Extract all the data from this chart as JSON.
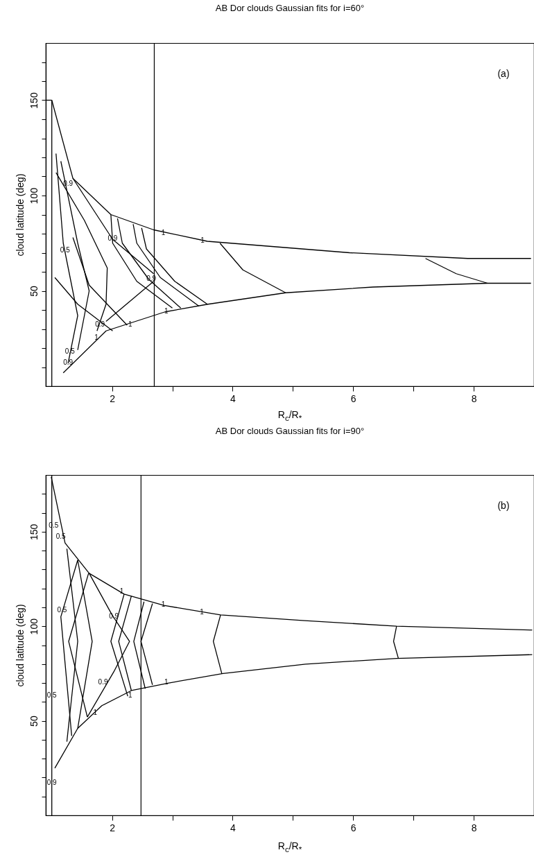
{
  "chart_data": [
    {
      "type": "line",
      "title": "AB Dor clouds Gaussian fits for i=60°",
      "xlabel": "R$_{c}$/R$_{*}$",
      "ylabel": "cloud latitude (deg)",
      "xlim": [
        0.9,
        9
      ],
      "ylim": [
        0,
        180
      ],
      "xticks": [
        2,
        {
          "value": 3,
          "label": null
        },
        4,
        {
          "value": 5,
          "label": null
        },
        6,
        {
          "value": 7,
          "label": null
        },
        8
      ],
      "yticks": [
        {
          "value": 10,
          "label": null
        },
        {
          "value": 20,
          "label": null
        },
        {
          "value": 30,
          "label": null
        },
        {
          "value": 40,
          "label": null
        },
        50,
        {
          "value": 60,
          "label": null
        },
        {
          "value": 70,
          "label": null
        },
        {
          "value": 80,
          "label": null
        },
        {
          "value": 90,
          "label": null
        },
        100,
        {
          "value": 110,
          "label": null
        },
        {
          "value": 120,
          "label": null
        },
        {
          "value": 130,
          "label": null
        },
        {
          "value": 140,
          "label": null
        },
        150,
        {
          "value": 160,
          "label": null
        },
        {
          "value": 170,
          "label": null
        }
      ],
      "series": [
        {
          "color": "#000000",
          "x": [
            1.0,
            1.0
          ],
          "values": [
            150,
            0
          ]
        },
        {
          "color": "#000000",
          "x": [
            1.0,
            1.35,
            1.98,
            2.69,
            3.58,
            5.94,
            7.9,
            8.95
          ],
          "values": [
            150,
            109,
            90,
            82,
            76,
            70,
            67,
            67
          ]
        },
        {
          "color": "#000000",
          "x": [
            1.19,
            1.9,
            2.88,
            3.59,
            4.88,
            6.33,
            8.23,
            8.95
          ],
          "values": [
            7,
            29,
            39,
            43,
            49,
            52,
            54,
            54
          ]
        },
        {
          "color": "#000000",
          "x": [
            1.05,
            1.43,
            2.01
          ],
          "values": [
            57,
            43,
            29
          ]
        },
        {
          "color": "#000000",
          "x": [
            1.35,
            1.62,
            2.25
          ],
          "values": [
            78,
            53,
            32
          ]
        },
        {
          "color": "#000000",
          "x": [
            1.98,
            2.01,
            2.41,
            3.0
          ],
          "values": [
            90,
            75,
            55,
            41
          ]
        },
        {
          "color": "#000000",
          "x": [
            2.09,
            2.17,
            2.61,
            3.14
          ],
          "values": [
            88,
            75,
            56,
            41
          ]
        },
        {
          "color": "#000000",
          "x": [
            2.35,
            2.41,
            2.8,
            3.44
          ],
          "values": [
            85,
            75,
            57,
            42
          ]
        },
        {
          "color": "#000000",
          "x": [
            2.49,
            2.57,
            3.04,
            3.58
          ],
          "values": [
            83,
            72,
            55,
            43
          ]
        },
        {
          "color": "#000000",
          "x": [
            3.79,
            4.17,
            4.88
          ],
          "values": [
            75,
            61,
            49
          ]
        },
        {
          "color": "#000000",
          "x": [
            7.2,
            7.71,
            8.23
          ],
          "values": [
            67,
            59,
            54
          ]
        },
        {
          "color": "#000000",
          "x": [
            1.35,
            2.01,
            2.69
          ],
          "values": [
            109,
            77,
            59
          ]
        },
        {
          "color": "#000000",
          "x": [
            2.69,
            1.9
          ],
          "values": [
            55,
            34
          ]
        },
        {
          "color": "#000000",
          "x": [
            1.07,
            1.54,
            1.92,
            1.9,
            1.75
          ],
          "values": [
            112,
            87,
            62,
            43,
            29
          ]
        },
        {
          "color": "#000000",
          "x": [
            1.15,
            1.43,
            1.62,
            1.43
          ],
          "values": [
            118,
            75,
            50,
            19
          ]
        },
        {
          "color": "#000000",
          "x": [
            1.07,
            1.19,
            1.43,
            1.27
          ],
          "values": [
            122,
            75,
            37,
            12
          ]
        },
        {
          "color": "#000000",
          "x": [
            0.9,
            1.0
          ],
          "values": [
            150,
            150
          ]
        }
      ],
      "ref_lines": [
        {
          "axis": "x",
          "value": 2.7,
          "color": "#000000"
        }
      ],
      "annotations": [
        "(a)",
        {
          "text": "1",
          "x": 2.85,
          "y": 80
        },
        {
          "text": "1",
          "x": 3.5,
          "y": 76
        },
        {
          "text": "1",
          "x": 2.9,
          "y": 39
        },
        {
          "text": "1",
          "x": 2.3,
          "y": 32
        },
        {
          "text": "1",
          "x": 1.74,
          "y": 25
        },
        {
          "text": "0.9",
          "x": 2.01,
          "y": 77
        },
        {
          "text": "0.9",
          "x": 2.65,
          "y": 56
        },
        {
          "text": "0.9",
          "x": 1.27,
          "y": 106
        },
        {
          "text": "0.9",
          "x": 1.8,
          "y": 32
        },
        {
          "text": "0.5",
          "x": 1.22,
          "y": 71
        },
        {
          "text": "0.5",
          "x": 1.3,
          "y": 18
        },
        {
          "text": "0.9",
          "x": 1.27,
          "y": 12
        }
      ]
    },
    {
      "type": "line",
      "title": "AB Dor clouds Gaussian fits for i=90°",
      "xlabel": "R$_{c}$/R$_{*}$",
      "ylabel": "cloud latitude (deg)",
      "xlim": [
        0.9,
        9
      ],
      "ylim": [
        0,
        180
      ],
      "xticks": [
        2,
        {
          "value": 3,
          "label": null
        },
        4,
        {
          "value": 5,
          "label": null
        },
        6,
        {
          "value": 7,
          "label": null
        },
        8
      ],
      "yticks": [
        {
          "value": 10,
          "label": null
        },
        {
          "value": 20,
          "label": null
        },
        {
          "value": 30,
          "label": null
        },
        {
          "value": 40,
          "label": null
        },
        50,
        {
          "value": 60,
          "label": null
        },
        {
          "value": 70,
          "label": null
        },
        {
          "value": 80,
          "label": null
        },
        {
          "value": 90,
          "label": null
        },
        100,
        {
          "value": 110,
          "label": null
        },
        {
          "value": 120,
          "label": null
        },
        {
          "value": 130,
          "label": null
        },
        {
          "value": 140,
          "label": null
        },
        150,
        {
          "value": 160,
          "label": null
        },
        {
          "value": 170,
          "label": null
        }
      ],
      "series": [
        {
          "color": "#000000",
          "x": [
            1.0,
            1.0
          ],
          "values": [
            0,
            180
          ]
        },
        {
          "color": "#000000",
          "x": [
            0.99,
            1.22,
            1.62,
            2.2,
            2.86,
            3.8,
            5.2,
            6.72,
            8.97
          ],
          "values": [
            179,
            144,
            128,
            117,
            111,
            106,
            103,
            100,
            98
          ]
        },
        {
          "color": "#000000",
          "x": [
            1.05,
            1.43,
            1.83,
            2.32,
            2.94,
            3.84,
            5.21,
            6.72,
            8.97
          ],
          "values": [
            25,
            46,
            58,
            66,
            70,
            75,
            80,
            83,
            85
          ]
        },
        {
          "color": "#000000",
          "x": [
            3.8,
            3.68,
            3.82
          ],
          "values": [
            106,
            92,
            75
          ]
        },
        {
          "color": "#000000",
          "x": [
            6.72,
            6.67,
            6.75
          ],
          "values": [
            100,
            92,
            83
          ]
        },
        {
          "color": "#000000",
          "x": [
            2.67,
            2.48,
            2.67
          ],
          "values": [
            112,
            92,
            69
          ]
        },
        {
          "color": "#000000",
          "x": [
            2.53,
            2.36,
            2.55
          ],
          "values": [
            113,
            92,
            67
          ]
        },
        {
          "color": "#000000",
          "x": [
            2.32,
            2.11,
            2.32
          ],
          "values": [
            116,
            92,
            66
          ]
        },
        {
          "color": "#000000",
          "x": [
            2.2,
            1.98,
            2.26
          ],
          "values": [
            117,
            92,
            63
          ]
        },
        {
          "color": "#000000",
          "x": [
            1.61,
            1.28,
            1.59
          ],
          "values": [
            128,
            92,
            52
          ]
        },
        {
          "color": "#000000",
          "x": [
            1.43,
            1.15,
            1.33
          ],
          "values": [
            135,
            105,
            42
          ]
        },
        {
          "color": "#000000",
          "x": [
            1.62,
            2.0,
            2.29,
            2.03,
            1.59
          ],
          "values": [
            128,
            106,
            92,
            76,
            52
          ]
        },
        {
          "color": "#000000",
          "x": [
            1.43,
            1.67,
            1.43
          ],
          "values": [
            135,
            92,
            46
          ]
        },
        {
          "color": "#000000",
          "x": [
            1.25,
            1.43,
            1.25
          ],
          "values": [
            141,
            92,
            39
          ]
        }
      ],
      "ref_lines": [
        {
          "axis": "x",
          "value": 2.48,
          "color": "#000000"
        }
      ],
      "annotations": [
        "(b)",
        {
          "text": "1",
          "x": 2.16,
          "y": 118
        },
        {
          "text": "1",
          "x": 2.85,
          "y": 111
        },
        {
          "text": "1",
          "x": 3.49,
          "y": 107
        },
        {
          "text": "1",
          "x": 2.9,
          "y": 70
        },
        {
          "text": "1",
          "x": 2.3,
          "y": 63
        },
        {
          "text": "1",
          "x": 1.72,
          "y": 54
        },
        {
          "text": "0.9",
          "x": 2.03,
          "y": 105
        },
        {
          "text": "0.9",
          "x": 1.85,
          "y": 70
        },
        {
          "text": "0.5",
          "x": 1.03,
          "y": 153
        },
        {
          "text": "0.5",
          "x": 1.15,
          "y": 147
        },
        {
          "text": "0.5",
          "x": 1.17,
          "y": 108
        },
        {
          "text": "0.5",
          "x": 1.0,
          "y": 63
        },
        {
          "text": "0.9",
          "x": 1.0,
          "y": 17
        }
      ]
    }
  ]
}
